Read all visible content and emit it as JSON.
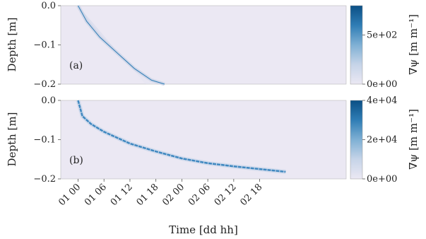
{
  "chart_data": [
    {
      "type": "heatmap",
      "panel_label": "(a)",
      "ylabel": "Depth [m]",
      "ylim": [
        -0.2,
        0.0
      ],
      "yticks": [
        "0.0",
        "−0.1",
        "−0.2"
      ],
      "colorbar": {
        "label": "∇ψ [m m⁻¹]",
        "range": [
          0,
          800
        ],
        "ticks": [
          "0e+00",
          "5e+02"
        ],
        "colormap": [
          "#ebe8f3",
          "#c6d4e8",
          "#7fb0d4",
          "#2f7db5",
          "#0b4f85"
        ]
      },
      "front": {
        "description_free": true,
        "x_hours": [
          0,
          2,
          5,
          9,
          13,
          17,
          20
        ],
        "depth_m": [
          0.0,
          -0.04,
          -0.08,
          -0.12,
          -0.16,
          -0.19,
          -0.2
        ]
      }
    },
    {
      "type": "heatmap",
      "panel_label": "(b)",
      "ylabel": "Depth [m]",
      "ylim": [
        -0.2,
        0.0
      ],
      "yticks": [
        "0.0",
        "−0.1",
        "−0.2"
      ],
      "xlabel": "Time [dd hh]",
      "xticks": [
        "01 00",
        "01 06",
        "01 12",
        "01 18",
        "02 00",
        "02 06",
        "02 12",
        "02 18"
      ],
      "colorbar": {
        "label": "∇ψ [m m⁻¹]",
        "range": [
          0,
          40000
        ],
        "ticks": [
          "0e+00",
          "2e+04",
          "4e+04"
        ],
        "colormap": [
          "#ebe8f3",
          "#c6d4e8",
          "#7fb0d4",
          "#2f7db5",
          "#0b4f85"
        ]
      },
      "front": {
        "x_hours": [
          0,
          1,
          3,
          6,
          12,
          18,
          24,
          30,
          36,
          42,
          48
        ],
        "depth_m": [
          0.0,
          -0.04,
          -0.06,
          -0.08,
          -0.11,
          -0.13,
          -0.148,
          -0.16,
          -0.168,
          -0.175,
          -0.182
        ]
      }
    }
  ]
}
